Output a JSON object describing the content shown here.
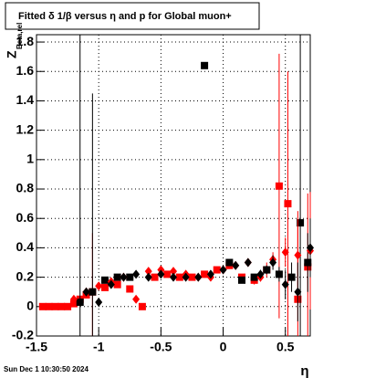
{
  "chart_data": {
    "type": "scatter",
    "title": "Fitted δ 1/β versus η and p for Global muon+",
    "x_label": "η",
    "y_label": "Z",
    "y_label_sub": "Beta,rel",
    "footer": "Sun Dec  1 10:30:50 2024",
    "xlim": [
      -1.5,
      0.7
    ],
    "ylim": [
      -0.2,
      1.85
    ],
    "xticks": [
      -1.5,
      -1,
      -0.5,
      0,
      0.5
    ],
    "yticks": [
      -0.2,
      0,
      0.2,
      0.4,
      0.6,
      0.8,
      1,
      1.2,
      1.4,
      1.6,
      1.8
    ],
    "grid": true,
    "series": [
      {
        "marker": "square",
        "color": "#ff0000",
        "x": [
          -1.45,
          -1.4,
          -1.35,
          -1.3,
          -1.25,
          -1.2,
          -1.15,
          -1.1,
          -1.05,
          -0.95,
          -0.85,
          -0.75,
          -0.65,
          -0.55,
          -0.45,
          -0.35,
          -0.25,
          -0.15,
          -0.05,
          0.05,
          0.15,
          0.25,
          0.35,
          0.45,
          0.52,
          0.6,
          0.68
        ],
        "values": [
          0,
          0,
          0,
          0,
          0,
          0.02,
          0.05,
          0.08,
          0.1,
          0.13,
          0.15,
          0.12,
          0,
          0.2,
          0.22,
          0.2,
          0.2,
          0.22,
          0.25,
          0.28,
          0.2,
          0.18,
          0.25,
          0.82,
          0.7,
          0.05,
          0.27
        ],
        "errors": [
          0.01,
          0.01,
          0.01,
          0.01,
          0.01,
          0.02,
          0.02,
          0.02,
          0.4,
          0.02,
          0.02,
          0.02,
          0.02,
          0.02,
          0.02,
          0.02,
          0.02,
          0.02,
          0.02,
          0.02,
          0.02,
          0.03,
          0.05,
          0.9,
          0.9,
          0.5,
          0.5
        ]
      },
      {
        "marker": "square",
        "color": "#000000",
        "x": [
          -1.15,
          -1.05,
          -0.95,
          -0.85,
          -0.75,
          -0.15,
          0.05,
          0.15,
          0.25,
          0.35,
          0.45,
          0.55,
          0.62,
          0.68
        ],
        "values": [
          0.03,
          0.1,
          0.18,
          0.2,
          0.2,
          1.64,
          0.3,
          0.18,
          0.2,
          0.25,
          0.22,
          0.2,
          0.57,
          0.3
        ],
        "errors": [
          1.9,
          1.35,
          0.02,
          0.02,
          0.02,
          0.02,
          0.02,
          0.02,
          0.02,
          0.03,
          0.05,
          0.1,
          1.3,
          0.2
        ]
      },
      {
        "marker": "diamond",
        "color": "#ff0000",
        "x": [
          -1.2,
          -1.1,
          -1.0,
          -0.9,
          -0.8,
          -0.7,
          -0.6,
          -0.5,
          -0.4,
          -0.3,
          -0.2,
          -0.1,
          0,
          0.1,
          0.2,
          0.3,
          0.4,
          0.5,
          0.6,
          0.7
        ],
        "values": [
          0.05,
          0.1,
          0.14,
          0.17,
          0.2,
          0.05,
          0.24,
          0.25,
          0.24,
          0.22,
          0.2,
          0.2,
          0.25,
          0.28,
          0.3,
          0.2,
          0.32,
          0.37,
          0.35,
          0.38
        ],
        "errors": [
          0.02,
          0.02,
          0.02,
          0.02,
          0.02,
          0.02,
          0.02,
          0.02,
          0.02,
          0.02,
          0.02,
          0.02,
          0.02,
          0.02,
          0.02,
          0.03,
          0.05,
          0.1,
          0.3,
          0.4
        ]
      },
      {
        "marker": "diamond",
        "color": "#000000",
        "x": [
          -1.1,
          -1.0,
          -0.9,
          -0.8,
          -0.7,
          -0.6,
          -0.5,
          -0.4,
          -0.3,
          -0.2,
          -0.1,
          0,
          0.1,
          0.2,
          0.3,
          0.4,
          0.5,
          0.6,
          0.7
        ],
        "values": [
          0.1,
          0.03,
          0.15,
          0.2,
          0.22,
          0.2,
          0.22,
          0.2,
          0.2,
          0.2,
          0.22,
          0.25,
          0.28,
          0.3,
          0.22,
          0.3,
          0.15,
          0.1,
          0.4
        ],
        "errors": [
          0.02,
          0.02,
          0.02,
          0.02,
          0.02,
          0.02,
          0.02,
          0.02,
          0.02,
          0.02,
          0.02,
          0.02,
          0.02,
          0.02,
          0.03,
          0.05,
          0.1,
          0.2,
          0.2
        ]
      }
    ]
  }
}
